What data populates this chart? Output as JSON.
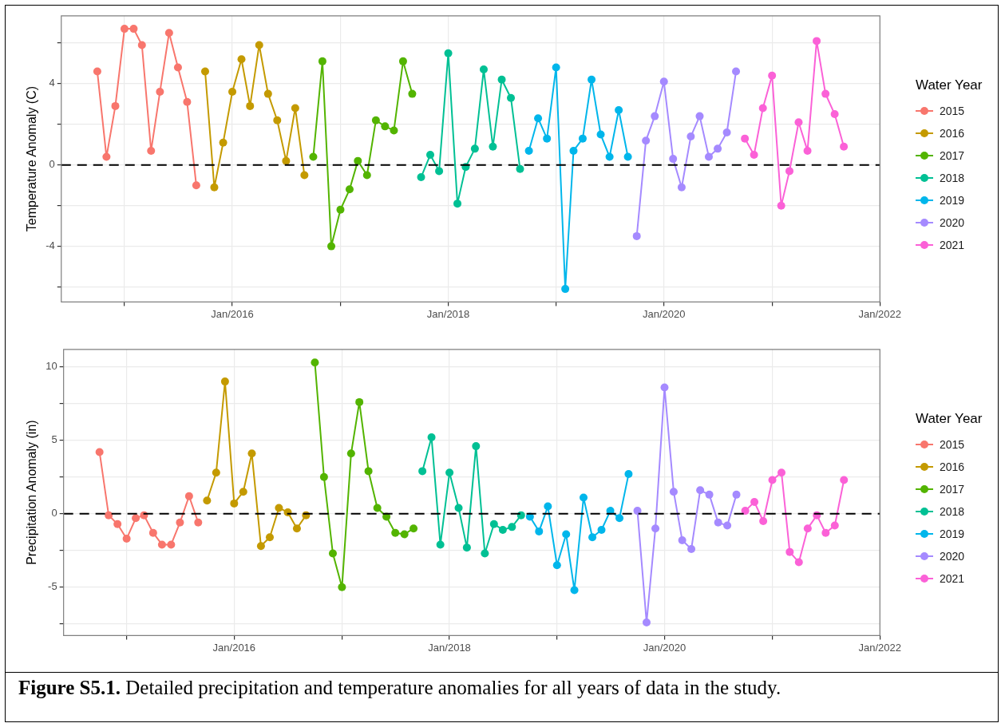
{
  "chart_data": [
    {
      "type": "line",
      "ylabel": "Temperature Anomaly (C)",
      "legend_title": "Water Year",
      "legend": "right",
      "grid": true,
      "marker": "circle",
      "line_style": "solid",
      "xlim": [
        "2014-06-01",
        "2022-01-01"
      ],
      "xticks": [
        {
          "value": "2015-01",
          "label": null
        },
        {
          "value": "2016-01",
          "label": "Jan/2016"
        },
        {
          "value": "2017-01",
          "label": null
        },
        {
          "value": "2018-01",
          "label": "Jan/2018"
        },
        {
          "value": "2019-01",
          "label": null
        },
        {
          "value": "2020-01",
          "label": "Jan/2020"
        },
        {
          "value": "2021-01",
          "label": null
        },
        {
          "value": "2022-01",
          "label": "Jan/2022"
        }
      ],
      "ylim": [
        -6.74,
        7.34
      ],
      "yticks": [
        {
          "value": -6,
          "label": null
        },
        -4,
        {
          "value": -2,
          "label": null
        },
        0,
        {
          "value": 2,
          "label": null
        },
        4,
        {
          "value": 6,
          "label": null
        }
      ],
      "ref_lines": [
        {
          "axis": "y",
          "value": 0,
          "color": "#000000",
          "line_style": "dashed"
        }
      ],
      "series": [
        {
          "name": "2015",
          "color": "#f8766d",
          "x": [
            "2014-10",
            "2014-11",
            "2014-12",
            "2015-01",
            "2015-02",
            "2015-03",
            "2015-04",
            "2015-05",
            "2015-06",
            "2015-07",
            "2015-08",
            "2015-09"
          ],
          "values": [
            4.6,
            0.4,
            2.9,
            6.7,
            6.7,
            5.9,
            0.7,
            3.6,
            6.5,
            4.8,
            3.1,
            -1.0
          ]
        },
        {
          "name": "2016",
          "color": "#c49a00",
          "x": [
            "2015-10",
            "2015-11",
            "2015-12",
            "2016-01",
            "2016-02",
            "2016-03",
            "2016-04",
            "2016-05",
            "2016-06",
            "2016-07",
            "2016-08",
            "2016-09"
          ],
          "values": [
            4.6,
            -1.1,
            1.1,
            3.6,
            5.2,
            2.9,
            5.9,
            3.5,
            2.2,
            0.2,
            2.8,
            -0.5
          ]
        },
        {
          "name": "2017",
          "color": "#53b400",
          "x": [
            "2016-10",
            "2016-11",
            "2016-12",
            "2017-01",
            "2017-02",
            "2017-03",
            "2017-04",
            "2017-05",
            "2017-06",
            "2017-07",
            "2017-08",
            "2017-09"
          ],
          "values": [
            0.4,
            5.1,
            -4.0,
            -2.2,
            -1.2,
            0.2,
            -0.5,
            2.2,
            1.9,
            1.7,
            5.1,
            3.5
          ]
        },
        {
          "name": "2018",
          "color": "#00c094",
          "x": [
            "2017-10",
            "2017-11",
            "2017-12",
            "2018-01",
            "2018-02",
            "2018-03",
            "2018-04",
            "2018-05",
            "2018-06",
            "2018-07",
            "2018-08",
            "2018-09"
          ],
          "values": [
            -0.6,
            0.5,
            -0.3,
            5.5,
            -1.9,
            -0.1,
            0.8,
            4.7,
            0.9,
            4.2,
            3.3,
            -0.2
          ]
        },
        {
          "name": "2019",
          "color": "#00b6eb",
          "x": [
            "2018-10",
            "2018-11",
            "2018-12",
            "2019-01",
            "2019-02",
            "2019-03",
            "2019-04",
            "2019-05",
            "2019-06",
            "2019-07",
            "2019-08",
            "2019-09"
          ],
          "values": [
            0.7,
            2.3,
            1.3,
            4.8,
            -6.1,
            0.7,
            1.3,
            4.2,
            1.5,
            0.4,
            2.7,
            0.4
          ]
        },
        {
          "name": "2020",
          "color": "#a58aff",
          "x": [
            "2019-10",
            "2019-11",
            "2019-12",
            "2020-01",
            "2020-02",
            "2020-03",
            "2020-04",
            "2020-05",
            "2020-06",
            "2020-07",
            "2020-08",
            "2020-09"
          ],
          "values": [
            -3.5,
            1.2,
            2.4,
            4.1,
            0.3,
            -1.1,
            1.4,
            2.4,
            0.4,
            0.8,
            1.6,
            4.6
          ]
        },
        {
          "name": "2021",
          "color": "#fb61d7",
          "x": [
            "2020-10",
            "2020-11",
            "2020-12",
            "2021-01",
            "2021-02",
            "2021-03",
            "2021-04",
            "2021-05",
            "2021-06",
            "2021-07",
            "2021-08",
            "2021-09"
          ],
          "values": [
            1.3,
            0.5,
            2.8,
            4.4,
            -2.0,
            -0.3,
            2.1,
            0.7,
            6.1,
            3.5,
            2.5,
            0.9
          ]
        }
      ]
    },
    {
      "type": "line",
      "ylabel": "Precipitation Anomaly (in)",
      "legend_title": "Water Year",
      "legend": "right",
      "grid": true,
      "marker": "circle",
      "line_style": "solid",
      "xlim": [
        "2014-06-01",
        "2022-01-01"
      ],
      "xticks": [
        {
          "value": "2015-01",
          "label": null
        },
        {
          "value": "2016-01",
          "label": "Jan/2016"
        },
        {
          "value": "2017-01",
          "label": null
        },
        {
          "value": "2018-01",
          "label": "Jan/2018"
        },
        {
          "value": "2019-01",
          "label": null
        },
        {
          "value": "2020-01",
          "label": "Jan/2020"
        },
        {
          "value": "2021-01",
          "label": null
        },
        {
          "value": "2022-01",
          "label": "Jan/2022"
        }
      ],
      "ylim": [
        -8.29,
        11.19
      ],
      "yticks": [
        {
          "value": -7.5,
          "label": null
        },
        -5,
        {
          "value": -2.5,
          "label": null
        },
        0,
        {
          "value": 2.5,
          "label": null
        },
        5,
        {
          "value": 7.5,
          "label": null
        },
        10
      ],
      "ref_lines": [
        {
          "axis": "y",
          "value": 0,
          "color": "#000000",
          "line_style": "dashed"
        }
      ],
      "annotations": [
        "Figure S5.1. Detailed precipitation and temperature anomalies for all years of data in the study."
      ],
      "series": [
        {
          "name": "2015",
          "color": "#f8766d",
          "x": [
            "2014-10",
            "2014-11",
            "2014-12",
            "2015-01",
            "2015-02",
            "2015-03",
            "2015-04",
            "2015-05",
            "2015-06",
            "2015-07",
            "2015-08",
            "2015-09"
          ],
          "values": [
            4.2,
            -0.1,
            -0.7,
            -1.7,
            -0.3,
            -0.1,
            -1.3,
            -2.1,
            -2.1,
            -0.6,
            1.2,
            -0.6
          ]
        },
        {
          "name": "2016",
          "color": "#c49a00",
          "x": [
            "2015-10",
            "2015-11",
            "2015-12",
            "2016-01",
            "2016-02",
            "2016-03",
            "2016-04",
            "2016-05",
            "2016-06",
            "2016-07",
            "2016-08",
            "2016-09"
          ],
          "values": [
            0.9,
            2.8,
            9.0,
            0.7,
            1.5,
            4.1,
            -2.2,
            -1.6,
            0.4,
            0.1,
            -1.0,
            -0.1
          ]
        },
        {
          "name": "2017",
          "color": "#53b400",
          "x": [
            "2016-10",
            "2016-11",
            "2016-12",
            "2017-01",
            "2017-02",
            "2017-03",
            "2017-04",
            "2017-05",
            "2017-06",
            "2017-07",
            "2017-08",
            "2017-09"
          ],
          "values": [
            10.3,
            2.5,
            -2.7,
            -5.0,
            4.1,
            7.6,
            2.9,
            0.4,
            -0.2,
            -1.3,
            -1.4,
            -1.0
          ]
        },
        {
          "name": "2018",
          "color": "#00c094",
          "x": [
            "2017-10",
            "2017-11",
            "2017-12",
            "2018-01",
            "2018-02",
            "2018-03",
            "2018-04",
            "2018-05",
            "2018-06",
            "2018-07",
            "2018-08",
            "2018-09"
          ],
          "values": [
            2.9,
            5.2,
            -2.1,
            2.8,
            0.4,
            -2.3,
            4.6,
            -2.7,
            -0.7,
            -1.1,
            -0.9,
            -0.1
          ]
        },
        {
          "name": "2019",
          "color": "#00b6eb",
          "x": [
            "2018-10",
            "2018-11",
            "2018-12",
            "2019-01",
            "2019-02",
            "2019-03",
            "2019-04",
            "2019-05",
            "2019-06",
            "2019-07",
            "2019-08",
            "2019-09"
          ],
          "values": [
            -0.2,
            -1.2,
            0.5,
            -3.5,
            -1.4,
            -5.2,
            1.1,
            -1.6,
            -1.1,
            0.2,
            -0.3,
            2.7
          ]
        },
        {
          "name": "2020",
          "color": "#a58aff",
          "x": [
            "2019-10",
            "2019-11",
            "2019-12",
            "2020-01",
            "2020-02",
            "2020-03",
            "2020-04",
            "2020-05",
            "2020-06",
            "2020-07",
            "2020-08",
            "2020-09"
          ],
          "values": [
            0.2,
            -7.4,
            -1.0,
            8.6,
            1.5,
            -1.8,
            -2.4,
            1.6,
            1.3,
            -0.6,
            -0.8,
            1.3
          ]
        },
        {
          "name": "2021",
          "color": "#fb61d7",
          "x": [
            "2020-10",
            "2020-11",
            "2020-12",
            "2021-01",
            "2021-02",
            "2021-03",
            "2021-04",
            "2021-05",
            "2021-06",
            "2021-07",
            "2021-08",
            "2021-09"
          ],
          "values": [
            0.2,
            0.8,
            -0.5,
            2.3,
            2.8,
            -2.6,
            -3.3,
            -1.0,
            -0.1,
            -1.3,
            -0.8,
            2.3
          ]
        }
      ]
    }
  ]
}
